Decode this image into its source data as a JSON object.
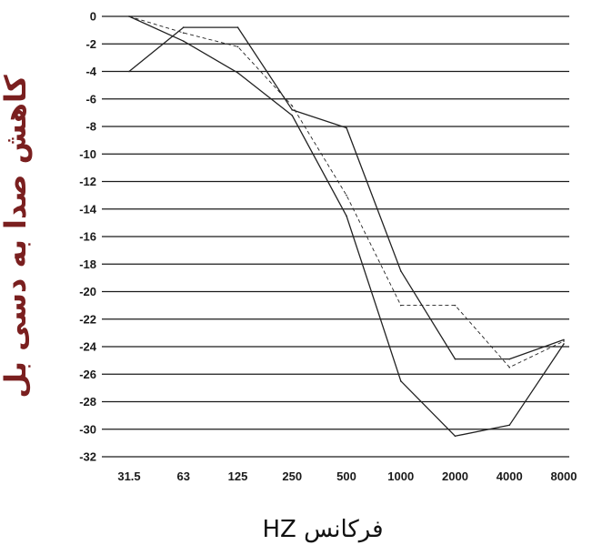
{
  "chart_data": {
    "type": "line",
    "title": "",
    "xlabel": "فرکانس HZ",
    "ylabel": "کاهش صدا به دسی بل",
    "categories": [
      "31.5",
      "63",
      "125",
      "250",
      "500",
      "1000",
      "2000",
      "4000",
      "8000"
    ],
    "yticks": [
      "0",
      "-2",
      "-4",
      "-6",
      "-8",
      "-10",
      "-12",
      "-14",
      "-16",
      "-18",
      "-20",
      "-22",
      "-24",
      "-26",
      "-28",
      "-30",
      "-32"
    ],
    "ylim": [
      -32,
      0
    ],
    "grid": true,
    "legend": "none",
    "colors": {
      "lines": "#222222",
      "ylabel": "#7a1f1f",
      "grid": "#1a1a1a"
    },
    "series": [
      {
        "values": [
          -4,
          -0.8,
          -0.8,
          -6.8,
          -8.1,
          -18.5,
          -24.9,
          -24.9,
          -23.5
        ],
        "style": "solid"
      },
      {
        "values": [
          0,
          -1.8,
          -4.1,
          -7.2,
          -14.5,
          -26.5,
          -30.5,
          -29.7,
          -23.8
        ],
        "style": "solid"
      },
      {
        "values": [
          0,
          -1.2,
          -2.2,
          -6.5,
          -13,
          -21,
          -21,
          -25.5,
          -23.6
        ],
        "style": "dashed"
      }
    ]
  }
}
